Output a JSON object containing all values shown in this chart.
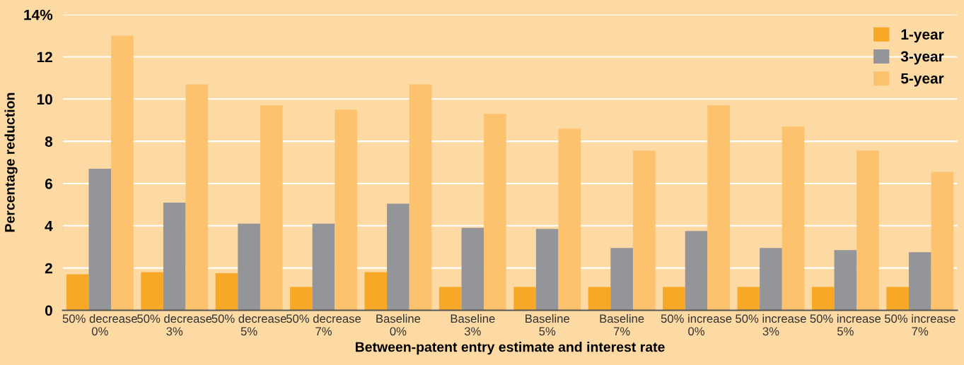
{
  "chart_data": {
    "type": "bar",
    "xlabel": "Between-patent entry estimate and interest rate",
    "ylabel": "Percentage reduction",
    "categories": [
      "50% decrease\n0%",
      "50% decrease\n3%",
      "50% decrease\n5%",
      "50% decrease\n7%",
      "Baseline\n0%",
      "Baseline\n3%",
      "Baseline\n5%",
      "Baseline\n7%",
      "50% increase\n0%",
      "50% increase\n3%",
      "50% increase\n5%",
      "50% increase\n7%"
    ],
    "series": [
      {
        "name": "1-year",
        "color": "#f7a826",
        "values": [
          1.7,
          1.8,
          1.75,
          1.1,
          1.8,
          1.1,
          1.1,
          1.1,
          1.1,
          1.1,
          1.1,
          1.1
        ]
      },
      {
        "name": "3-year",
        "color": "#939598",
        "values": [
          6.7,
          5.1,
          4.1,
          4.1,
          5.05,
          3.9,
          3.85,
          2.95,
          3.75,
          2.95,
          2.85,
          2.75
        ]
      },
      {
        "name": "5-year",
        "color": "#fcc26e",
        "values": [
          13.0,
          10.7,
          9.7,
          9.5,
          10.7,
          9.3,
          8.6,
          7.55,
          9.7,
          8.7,
          7.55,
          6.55
        ]
      }
    ],
    "ylim": [
      0,
      14
    ],
    "yticks": [
      0,
      2,
      4,
      6,
      8,
      10,
      12,
      {
        "value": 14,
        "label": "14%"
      }
    ],
    "grid": "y",
    "legend": "top right"
  }
}
